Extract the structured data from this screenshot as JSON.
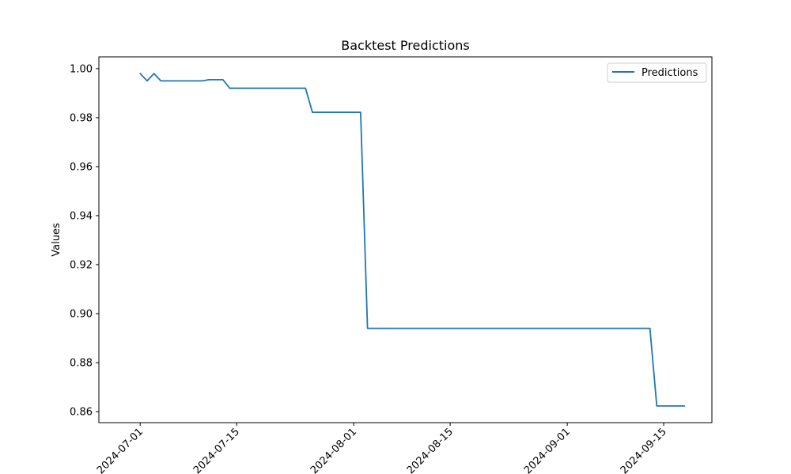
{
  "chart_data": {
    "type": "line",
    "title": "Backtest Predictions",
    "xlabel": "",
    "ylabel": "Values",
    "x_tick_labels": [
      "2024-07-01",
      "2024-07-15",
      "2024-08-01",
      "2024-08-15",
      "2024-09-01",
      "2024-09-15"
    ],
    "x_tick_dates": [
      "2024-07-01",
      "2024-07-15",
      "2024-08-01",
      "2024-08-15",
      "2024-09-01",
      "2024-09-15"
    ],
    "y_tick_labels": [
      "0.86",
      "0.88",
      "0.90",
      "0.92",
      "0.94",
      "0.96",
      "0.98",
      "1.00"
    ],
    "y_tick_values": [
      0.86,
      0.88,
      0.9,
      0.92,
      0.94,
      0.96,
      0.98,
      1.0
    ],
    "xlim": [
      "2024-06-25",
      "2024-09-22"
    ],
    "ylim": [
      0.8555,
      1.0048
    ],
    "grid": false,
    "legend_position": "upper right",
    "series": [
      {
        "name": "Predictions",
        "color": "#1f77b4",
        "x": [
          "2024-07-01",
          "2024-07-02",
          "2024-07-03",
          "2024-07-04",
          "2024-07-05",
          "2024-07-06",
          "2024-07-07",
          "2024-07-08",
          "2024-07-09",
          "2024-07-10",
          "2024-07-11",
          "2024-07-12",
          "2024-07-13",
          "2024-07-14",
          "2024-07-15",
          "2024-07-16",
          "2024-07-17",
          "2024-07-18",
          "2024-07-19",
          "2024-07-20",
          "2024-07-21",
          "2024-07-22",
          "2024-07-23",
          "2024-07-24",
          "2024-07-25",
          "2024-07-26",
          "2024-07-27",
          "2024-07-28",
          "2024-07-29",
          "2024-07-30",
          "2024-07-31",
          "2024-08-01",
          "2024-08-02",
          "2024-08-03",
          "2024-08-04",
          "2024-08-05",
          "2024-08-06",
          "2024-08-07",
          "2024-08-08",
          "2024-08-09",
          "2024-08-10",
          "2024-08-11",
          "2024-08-12",
          "2024-08-13",
          "2024-08-14",
          "2024-08-15",
          "2024-08-16",
          "2024-08-17",
          "2024-08-18",
          "2024-08-19",
          "2024-08-20",
          "2024-08-21",
          "2024-08-22",
          "2024-08-23",
          "2024-08-24",
          "2024-08-25",
          "2024-08-26",
          "2024-08-27",
          "2024-08-28",
          "2024-08-29",
          "2024-08-30",
          "2024-08-31",
          "2024-09-01",
          "2024-09-02",
          "2024-09-03",
          "2024-09-04",
          "2024-09-05",
          "2024-09-06",
          "2024-09-07",
          "2024-09-08",
          "2024-09-09",
          "2024-09-10",
          "2024-09-11",
          "2024-09-12",
          "2024-09-13",
          "2024-09-14",
          "2024-09-15",
          "2024-09-16",
          "2024-09-17",
          "2024-09-18"
        ],
        "y": [
          0.998,
          0.995,
          0.998,
          0.995,
          0.995,
          0.995,
          0.995,
          0.995,
          0.995,
          0.995,
          0.9955,
          0.9955,
          0.9955,
          0.992,
          0.992,
          0.992,
          0.992,
          0.992,
          0.992,
          0.992,
          0.992,
          0.992,
          0.992,
          0.992,
          0.992,
          0.9822,
          0.9822,
          0.9822,
          0.9822,
          0.9822,
          0.9822,
          0.9822,
          0.9822,
          0.894,
          0.894,
          0.894,
          0.894,
          0.894,
          0.894,
          0.894,
          0.894,
          0.894,
          0.894,
          0.894,
          0.894,
          0.894,
          0.894,
          0.894,
          0.894,
          0.894,
          0.894,
          0.894,
          0.894,
          0.894,
          0.894,
          0.894,
          0.894,
          0.894,
          0.894,
          0.894,
          0.894,
          0.894,
          0.894,
          0.894,
          0.894,
          0.894,
          0.894,
          0.894,
          0.894,
          0.894,
          0.894,
          0.894,
          0.894,
          0.894,
          0.894,
          0.8623,
          0.8623,
          0.8623,
          0.8623,
          0.8623
        ]
      }
    ]
  }
}
